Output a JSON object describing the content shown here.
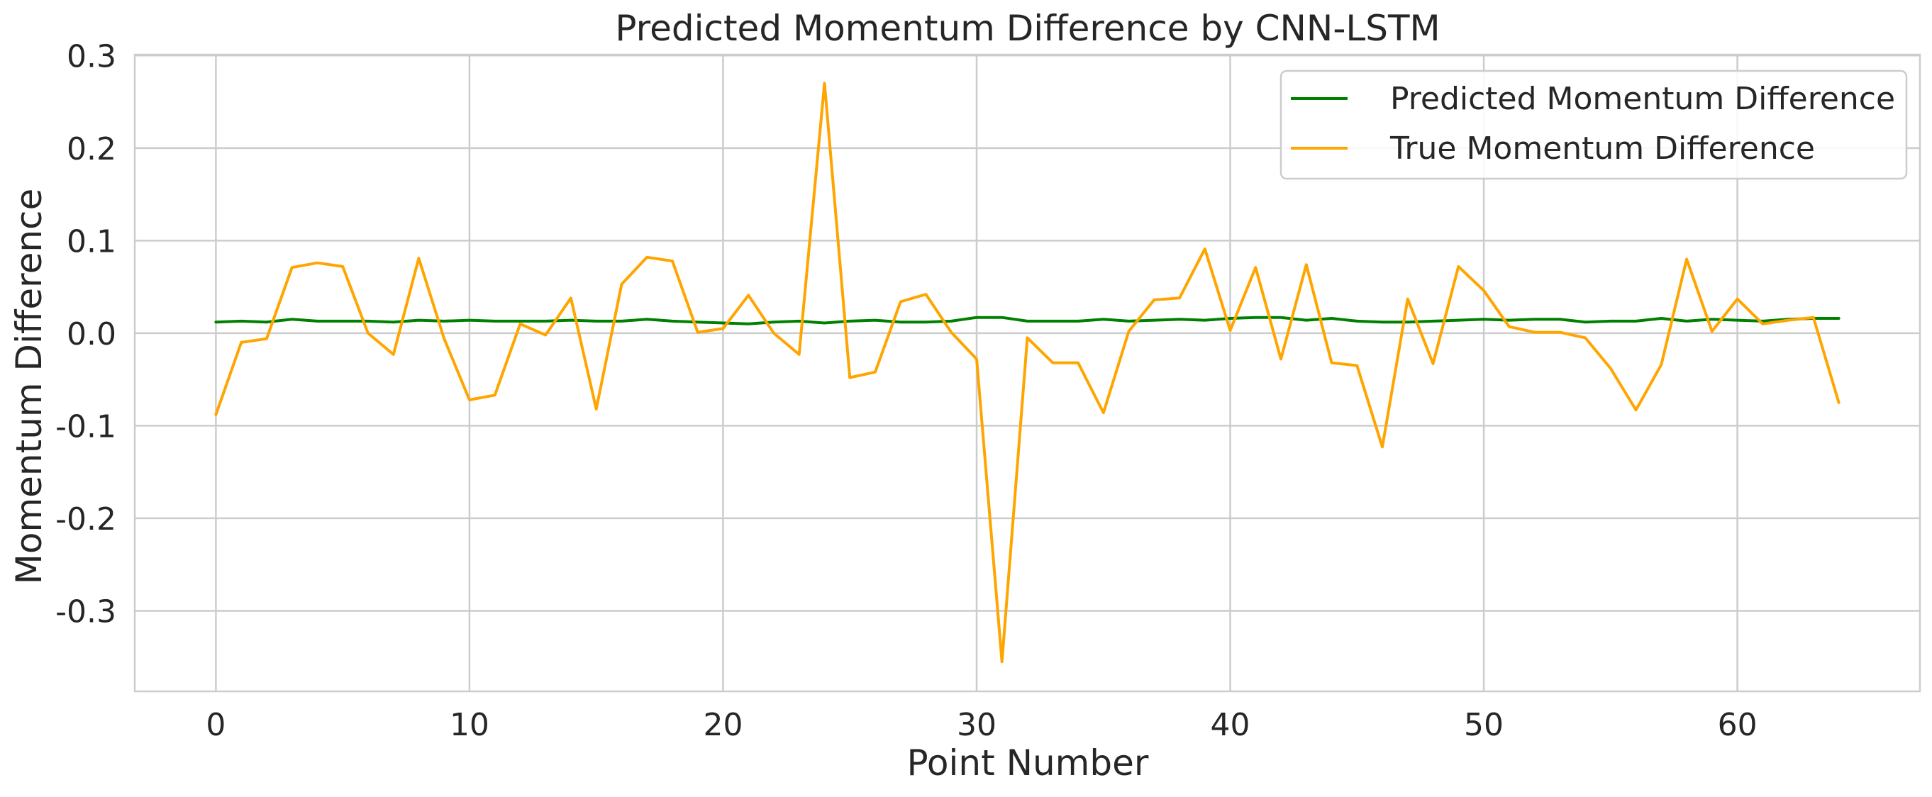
{
  "chart_data": {
    "type": "line",
    "title": "Predicted Momentum Difference by CNN-LSTM",
    "xlabel": "Point Number",
    "ylabel": "Momentum Difference",
    "xlim": [
      -3.2,
      67.2
    ],
    "ylim": [
      -0.387,
      0.301
    ],
    "xticks": [
      0,
      10,
      20,
      30,
      40,
      50,
      60
    ],
    "xtick_labels": [
      "0",
      "10",
      "20",
      "30",
      "40",
      "50",
      "60"
    ],
    "yticks": [
      0.3,
      0.2,
      0.1,
      0.0,
      -0.1,
      -0.2,
      -0.3
    ],
    "ytick_labels": [
      "0.3",
      "0.2",
      "0.1",
      "0.0",
      "-0.1",
      "-0.2",
      "-0.3"
    ],
    "grid": true,
    "legend_position": "top-right",
    "series": [
      {
        "name": "Predicted Momentum Difference",
        "color": "#008000",
        "x": [
          0,
          1,
          2,
          3,
          4,
          5,
          6,
          7,
          8,
          9,
          10,
          11,
          12,
          13,
          14,
          15,
          16,
          17,
          18,
          19,
          20,
          21,
          22,
          23,
          24,
          25,
          26,
          27,
          28,
          29,
          30,
          31,
          32,
          33,
          34,
          35,
          36,
          37,
          38,
          39,
          40,
          41,
          42,
          43,
          44,
          45,
          46,
          47,
          48,
          49,
          50,
          51,
          52,
          53,
          54,
          55,
          56,
          57,
          58,
          59,
          60,
          61,
          62,
          63,
          64
        ],
        "values": [
          0.012,
          0.013,
          0.012,
          0.015,
          0.013,
          0.013,
          0.013,
          0.012,
          0.014,
          0.013,
          0.014,
          0.013,
          0.013,
          0.013,
          0.014,
          0.013,
          0.013,
          0.015,
          0.013,
          0.012,
          0.011,
          0.01,
          0.012,
          0.013,
          0.011,
          0.013,
          0.014,
          0.012,
          0.012,
          0.013,
          0.017,
          0.017,
          0.013,
          0.013,
          0.013,
          0.015,
          0.013,
          0.014,
          0.015,
          0.014,
          0.016,
          0.017,
          0.017,
          0.014,
          0.016,
          0.013,
          0.012,
          0.012,
          0.013,
          0.014,
          0.015,
          0.014,
          0.015,
          0.015,
          0.012,
          0.013,
          0.013,
          0.016,
          0.013,
          0.015,
          0.014,
          0.013,
          0.015,
          0.016,
          0.016
        ]
      },
      {
        "name": "True Momentum Difference",
        "color": "#FFA500",
        "x": [
          0,
          1,
          2,
          3,
          4,
          5,
          6,
          7,
          8,
          9,
          10,
          11,
          12,
          13,
          14,
          15,
          16,
          17,
          18,
          19,
          20,
          21,
          22,
          23,
          24,
          25,
          26,
          27,
          28,
          29,
          30,
          31,
          32,
          33,
          34,
          35,
          36,
          37,
          38,
          39,
          40,
          41,
          42,
          43,
          44,
          45,
          46,
          47,
          48,
          49,
          50,
          51,
          52,
          53,
          54,
          55,
          56,
          57,
          58,
          59,
          60,
          61,
          62,
          63,
          64
        ],
        "values": [
          -0.088,
          -0.01,
          -0.006,
          0.071,
          0.076,
          0.072,
          0.0,
          -0.023,
          0.081,
          -0.006,
          -0.072,
          -0.067,
          0.01,
          -0.002,
          0.038,
          -0.082,
          0.053,
          0.082,
          0.078,
          0.001,
          0.005,
          0.041,
          0.0,
          -0.023,
          0.27,
          -0.048,
          -0.042,
          0.034,
          0.042,
          0.001,
          -0.028,
          -0.355,
          -0.005,
          -0.032,
          -0.032,
          -0.086,
          0.002,
          0.036,
          0.038,
          0.091,
          0.003,
          0.071,
          -0.028,
          0.074,
          -0.032,
          -0.035,
          -0.123,
          0.037,
          -0.033,
          0.072,
          0.046,
          0.007,
          0.001,
          0.001,
          -0.005,
          -0.038,
          -0.083,
          -0.034,
          0.08,
          0.002,
          0.037,
          0.01,
          0.014,
          0.017,
          -0.075
        ]
      }
    ]
  }
}
